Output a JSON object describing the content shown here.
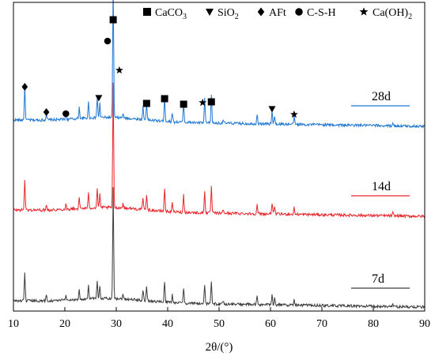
{
  "chart_data": {
    "type": "line",
    "title": "",
    "xlabel": "2θ/(°)",
    "ylabel": "",
    "xlim": [
      10,
      90
    ],
    "x_ticks": [
      "10",
      "20",
      "30",
      "40",
      "50",
      "60",
      "70",
      "80",
      "90"
    ],
    "y_ticks_shown": false,
    "grid": false,
    "legend_placement": "top-right",
    "legend": [
      {
        "symbol": "square",
        "glyph": "■",
        "label": "CaCO3",
        "formula": [
          "CaCO",
          "3",
          ""
        ],
        "phase": "CaCO3"
      },
      {
        "symbol": "triangle-down",
        "glyph": "▼",
        "label": "SiO2",
        "formula": [
          "SiO",
          "2",
          ""
        ],
        "phase": "SiO2"
      },
      {
        "symbol": "diamond",
        "glyph": "◆",
        "label": "AFt",
        "formula": [
          "AFt",
          "",
          ""
        ],
        "phase": "AFt"
      },
      {
        "symbol": "circle",
        "glyph": "●",
        "label": "C-S-H",
        "formula": [
          "C-S-H",
          "",
          ""
        ],
        "phase": "C-S-H"
      },
      {
        "symbol": "star",
        "glyph": "★",
        "label": "Ca(OH)2",
        "formula": [
          "Ca(OH)",
          "2",
          ""
        ],
        "phase": "Ca(OH)2"
      }
    ],
    "series": [
      {
        "name": "28d",
        "color": "#1f77d4",
        "peak_scale": 1.0
      },
      {
        "name": "14d",
        "color": "#e8262b",
        "peak_scale": 0.92
      },
      {
        "name": "7d",
        "color": "#3c3c3c",
        "peak_scale": 0.82
      }
    ],
    "peaks": [
      {
        "x": 12.2,
        "h": 0.42
      },
      {
        "x": 16.4,
        "h": 0.08
      },
      {
        "x": 20.2,
        "h": 0.07
      },
      {
        "x": 22.8,
        "h": 0.14
      },
      {
        "x": 24.6,
        "h": 0.2
      },
      {
        "x": 26.3,
        "h": 0.26
      },
      {
        "x": 26.8,
        "h": 0.18
      },
      {
        "x": 29.4,
        "h": 1.7
      },
      {
        "x": 31.3,
        "h": 0.06
      },
      {
        "x": 35.2,
        "h": 0.16
      },
      {
        "x": 35.9,
        "h": 0.22
      },
      {
        "x": 39.4,
        "h": 0.32
      },
      {
        "x": 40.9,
        "h": 0.12
      },
      {
        "x": 43.1,
        "h": 0.24
      },
      {
        "x": 47.2,
        "h": 0.3
      },
      {
        "x": 48.5,
        "h": 0.36
      },
      {
        "x": 50.8,
        "h": 0.05
      },
      {
        "x": 57.4,
        "h": 0.12
      },
      {
        "x": 60.3,
        "h": 0.16
      },
      {
        "x": 60.8,
        "h": 0.11
      },
      {
        "x": 64.6,
        "h": 0.09
      },
      {
        "x": 83.8,
        "h": 0.04
      }
    ],
    "phase_markers": [
      {
        "phase": "AFt",
        "x": 12.2
      },
      {
        "phase": "AFt",
        "x": 16.4
      },
      {
        "phase": "C-S-H",
        "x": 20.2
      },
      {
        "phase": "SiO2",
        "x": 26.6
      },
      {
        "phase": "C-S-H",
        "x": 28.7
      },
      {
        "phase": "CaCO3",
        "x": 29.4
      },
      {
        "phase": "Ca(OH)2",
        "x": 30.6
      },
      {
        "phase": "CaCO3",
        "x": 35.9
      },
      {
        "phase": "CaCO3",
        "x": 39.4
      },
      {
        "phase": "CaCO3",
        "x": 43.1
      },
      {
        "phase": "Ca(OH)2",
        "x": 46.8
      },
      {
        "phase": "CaCO3",
        "x": 48.5
      },
      {
        "phase": "SiO2",
        "x": 60.3
      },
      {
        "phase": "Ca(OH)2",
        "x": 64.6
      }
    ]
  }
}
